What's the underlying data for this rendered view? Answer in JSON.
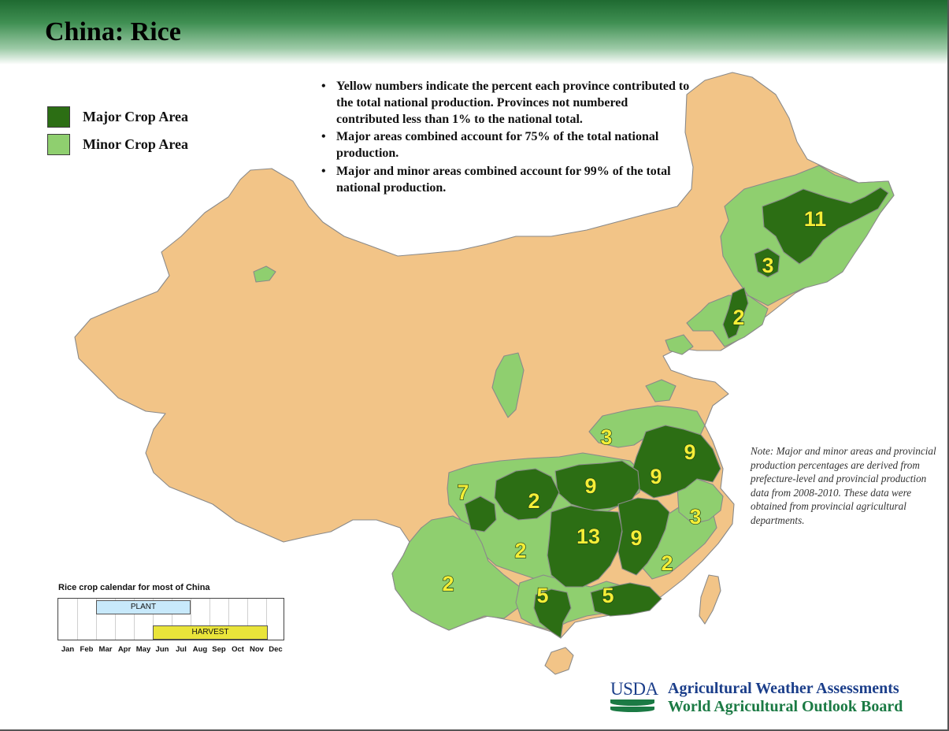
{
  "header": {
    "title": "China: Rice"
  },
  "legend": {
    "items": [
      {
        "label": "Major Crop Area",
        "color": "#2c6e14"
      },
      {
        "label": "Minor Crop Area",
        "color": "#8fcf6f"
      }
    ]
  },
  "notes": {
    "bullets": [
      "Yellow numbers indicate the percent each province contributed to the total national production.  Provinces not numbered contributed less than 1% to the national total.",
      "Major areas combined account for 75% of the total national production.",
      "Major and minor areas combined account for 99% of the total national production."
    ],
    "side_note": "Note:  Major and minor areas and provincial production percentages are derived from prefecture-level and provincial production data from 2008-2010. These data were obtained from provincial agricultural departments."
  },
  "colors": {
    "background_land": "#f2c487",
    "major": "#2c6e14",
    "minor": "#8fcf6f",
    "percent_label": "#f4ee37",
    "header_green": "#1f6a31"
  },
  "percent_labels": [
    "11",
    "3",
    "2",
    "3",
    "9",
    "9",
    "9",
    "3",
    "7",
    "2",
    "13",
    "9",
    "2",
    "2",
    "2",
    "5",
    "5"
  ],
  "calendar": {
    "title": "Rice crop calendar for most of China",
    "months": [
      "Jan",
      "Feb",
      "Mar",
      "Apr",
      "May",
      "Jun",
      "Jul",
      "Aug",
      "Sep",
      "Oct",
      "Nov",
      "Dec"
    ],
    "plant": {
      "label": "PLANT",
      "color": "#c8e9fb"
    },
    "harvest": {
      "label": "HARVEST",
      "color": "#e9e43a"
    }
  },
  "footer": {
    "logo_text": "USDA",
    "agency_line1": "Agricultural Weather Assessments",
    "agency_line2": "World Agricultural Outlook Board"
  }
}
